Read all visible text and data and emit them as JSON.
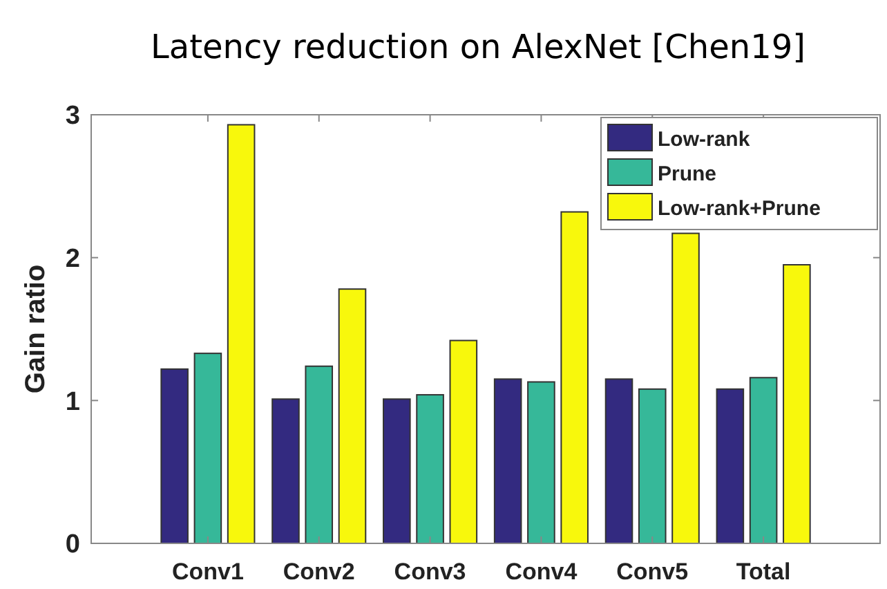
{
  "chart_data": {
    "type": "bar",
    "title": "Latency reduction on AlexNet [Chen19]",
    "ylabel": "Gain ratio",
    "categories": [
      "Conv1",
      "Conv2",
      "Conv3",
      "Conv4",
      "Conv5",
      "Total"
    ],
    "series": [
      {
        "name": "Low-rank",
        "color": "#332a80",
        "values": [
          1.22,
          1.01,
          1.01,
          1.15,
          1.15,
          1.08
        ]
      },
      {
        "name": "Prune",
        "color": "#36b899",
        "values": [
          1.33,
          1.24,
          1.04,
          1.13,
          1.08,
          1.16
        ]
      },
      {
        "name": "Low-rank+Prune",
        "color": "#f8f80c",
        "values": [
          2.93,
          1.78,
          1.42,
          2.32,
          2.17,
          1.95
        ]
      }
    ],
    "ylim": [
      0,
      3
    ],
    "yticks": [
      0,
      1,
      2,
      3
    ],
    "grid": false,
    "legend": "top right"
  }
}
